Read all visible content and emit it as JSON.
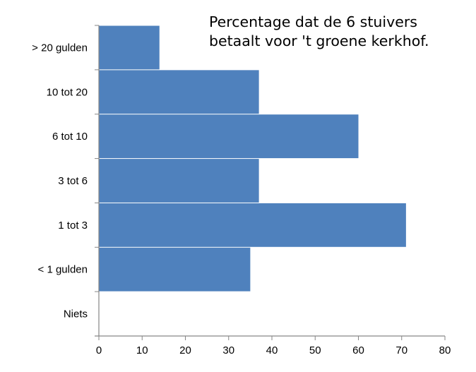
{
  "chart_data": {
    "type": "bar",
    "orientation": "horizontal",
    "title": "Percentage dat de 6 stuivers betaalt voor 't groene kerkhof.",
    "title_lines": [
      "Percentage dat de 6 stuivers",
      "betaalt voor 't groene kerkhof."
    ],
    "categories": [
      "> 20 gulden",
      "10 tot 20",
      "6 tot 10",
      "3 tot 6",
      "1 tot 3",
      "< 1 gulden",
      "Niets"
    ],
    "values": [
      14,
      37,
      60,
      37,
      71,
      35,
      0
    ],
    "xlabel": "",
    "ylabel": "",
    "xlim": [
      0,
      80
    ],
    "xticks": [
      0,
      10,
      20,
      30,
      40,
      50,
      60,
      70,
      80
    ],
    "grid": false,
    "legend": null,
    "bar_color": "#4F81BD"
  }
}
